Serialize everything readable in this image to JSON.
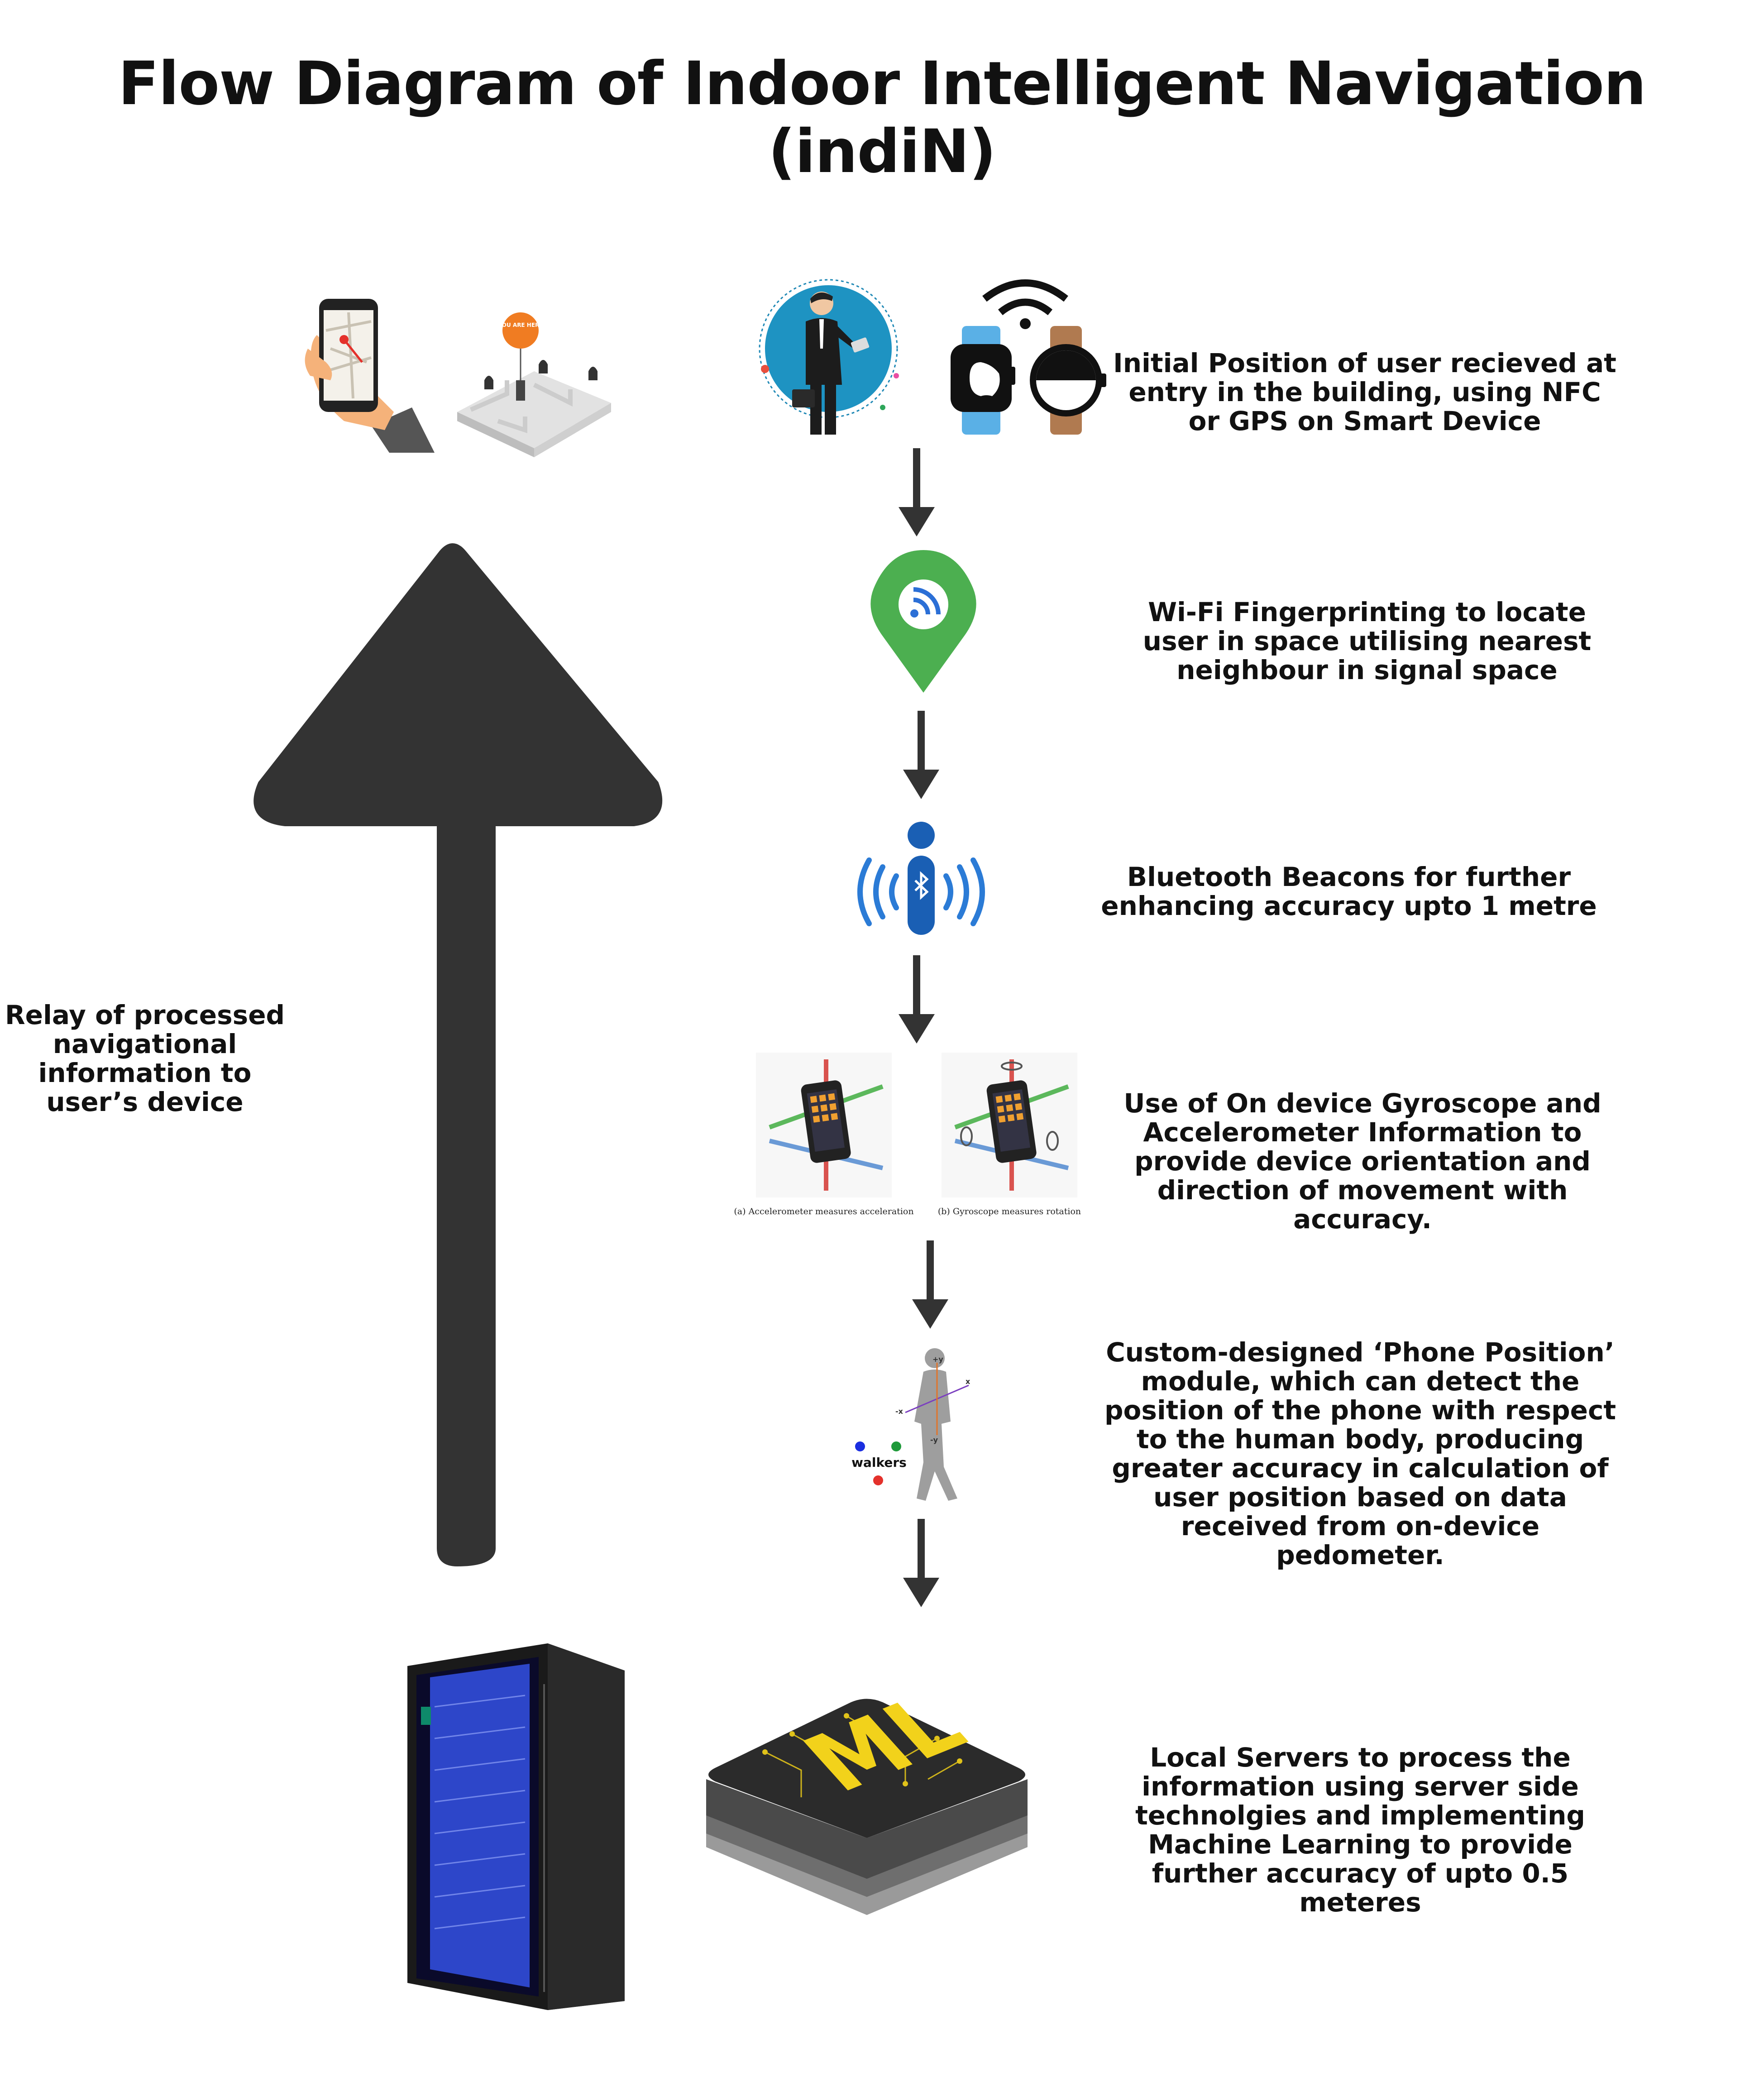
{
  "title_line1": "Flow Diagram of Indoor Intelligent Navigation",
  "title_line2": "(indiN)",
  "steps": [
    {
      "text": "Initial Position of user recieved at entry in the building, using NFC or GPS on Smart Device"
    },
    {
      "text": "Wi-Fi Fingerprinting to locate user in space utilising nearest neighbour in signal space"
    },
    {
      "text": "Bluetooth Beacons for further enhancing accuracy upto 1 metre"
    },
    {
      "text": "Use of On device Gyroscope and Accelerometer Information to provide device orientation and direction of movement with accuracy."
    },
    {
      "text": "Custom-designed ‘Phone Position’ module, which can detect the position of the phone with respect to the human body, producing greater accuracy in calculation of user position based on data received from on-device pedometer."
    },
    {
      "text": "Local Servers to process the information using server side technolgies and implementing Machine Learning to provide further accuracy of upto 0.5 meteres"
    }
  ],
  "relay_text": "Relay of processed navigational information  to user’s device",
  "map_pin_text": "YOU ARE HERE",
  "sensor_captions": {
    "accelerometer": "(a) Accelerometer measures acceleration",
    "gyroscope": "(b) Gyroscope measures rotation"
  },
  "walkers_label": "walkers",
  "ml_label": "ML",
  "colors": {
    "arrow": "#333333",
    "big_arrow": "#333333",
    "wifi_pin": "#4caf50",
    "bluetooth": "#1a5fb4",
    "bluetooth_waves": "#2b7bd6",
    "server_glow": "#3a5bff",
    "ml_text": "#f2d21b",
    "pin_orange": "#f07c22"
  }
}
